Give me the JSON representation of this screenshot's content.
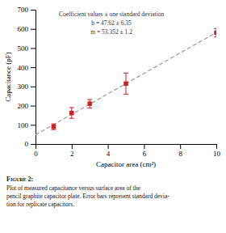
{
  "chart_data": {
    "type": "scatter",
    "x_label": "Capacitor area (cm²)",
    "y_label": "Capacitance (pF)",
    "annotations": [
      "Coefficient values ± one standard deviation",
      "b = 47.62 ± 6.35",
      "m = 53.352 ± 1.2"
    ],
    "caption_bold": "Figure 2:",
    "caption": [
      "Plot of measured capacitance versus surface area of the",
      "pencil graphite capacitor plate. Error bars represent standard devia-",
      "tion for replicate capacitors."
    ],
    "series": [
      {
        "type": "scatter",
        "x": [
          1,
          2,
          3,
          5,
          10
        ],
        "values": [
          90,
          162,
          210,
          315,
          580
        ],
        "y_err": [
          15,
          28,
          22,
          55,
          22
        ],
        "color": "#cc2222",
        "marker": "square"
      },
      {
        "type": "line",
        "x": [
          0,
          10
        ],
        "values": [
          47.62,
          581.14
        ],
        "color": "#999999",
        "line_style": "dashed"
      }
    ],
    "xlim": [
      0,
      10
    ],
    "ylim": [
      0,
      700
    ],
    "xticks": [
      0,
      2,
      4,
      6,
      8,
      10
    ],
    "yticks": [
      0,
      100,
      200,
      300,
      400,
      500,
      600,
      700
    ],
    "grid": false
  }
}
